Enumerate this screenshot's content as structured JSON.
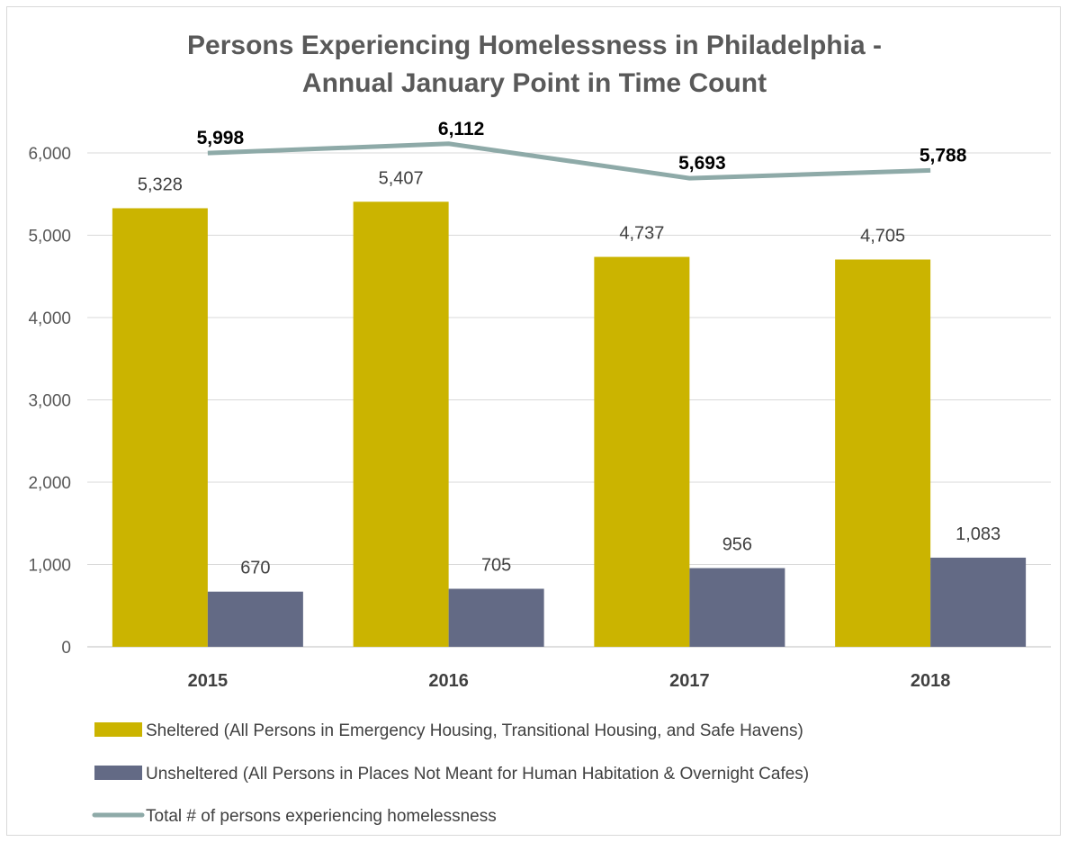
{
  "chart_data": {
    "type": "bar",
    "title": [
      "Persons Experiencing Homelessness in Philadelphia -",
      "Annual January Point in Time Count"
    ],
    "xlabel": "",
    "ylabel": "",
    "ylim": [
      0,
      6000
    ],
    "ytick_values": [
      0,
      1000,
      2000,
      3000,
      4000,
      5000,
      6000
    ],
    "ytick_labels": [
      "0",
      "1,000",
      "2,000",
      "3,000",
      "4,000",
      "5,000",
      "6,000"
    ],
    "categories": [
      "2015",
      "2016",
      "2017",
      "2018"
    ],
    "grid": true,
    "legend_position": "bottom",
    "series": [
      {
        "name": "Sheltered (All Persons in Emergency Housing, Transitional Housing, and Safe Havens)",
        "kind": "bar",
        "color": "#cbb400",
        "values": [
          5328,
          5407,
          4737,
          4705
        ],
        "labels": [
          "5,328",
          "5,407",
          "4,737",
          "4,705"
        ]
      },
      {
        "name": "Unsheltered (All Persons in Places Not Meant for Human Habitation & Overnight Cafes)",
        "kind": "bar",
        "color": "#636a85",
        "values": [
          670,
          705,
          956,
          1083
        ],
        "labels": [
          "670",
          "705",
          "956",
          "1,083"
        ]
      },
      {
        "name": "Total # of persons experiencing homelessness",
        "kind": "line",
        "color": "#8eaaa8",
        "values": [
          5998,
          6112,
          5693,
          5788
        ],
        "labels": [
          "5,998",
          "6,112",
          "5,693",
          "5,788"
        ]
      }
    ]
  }
}
